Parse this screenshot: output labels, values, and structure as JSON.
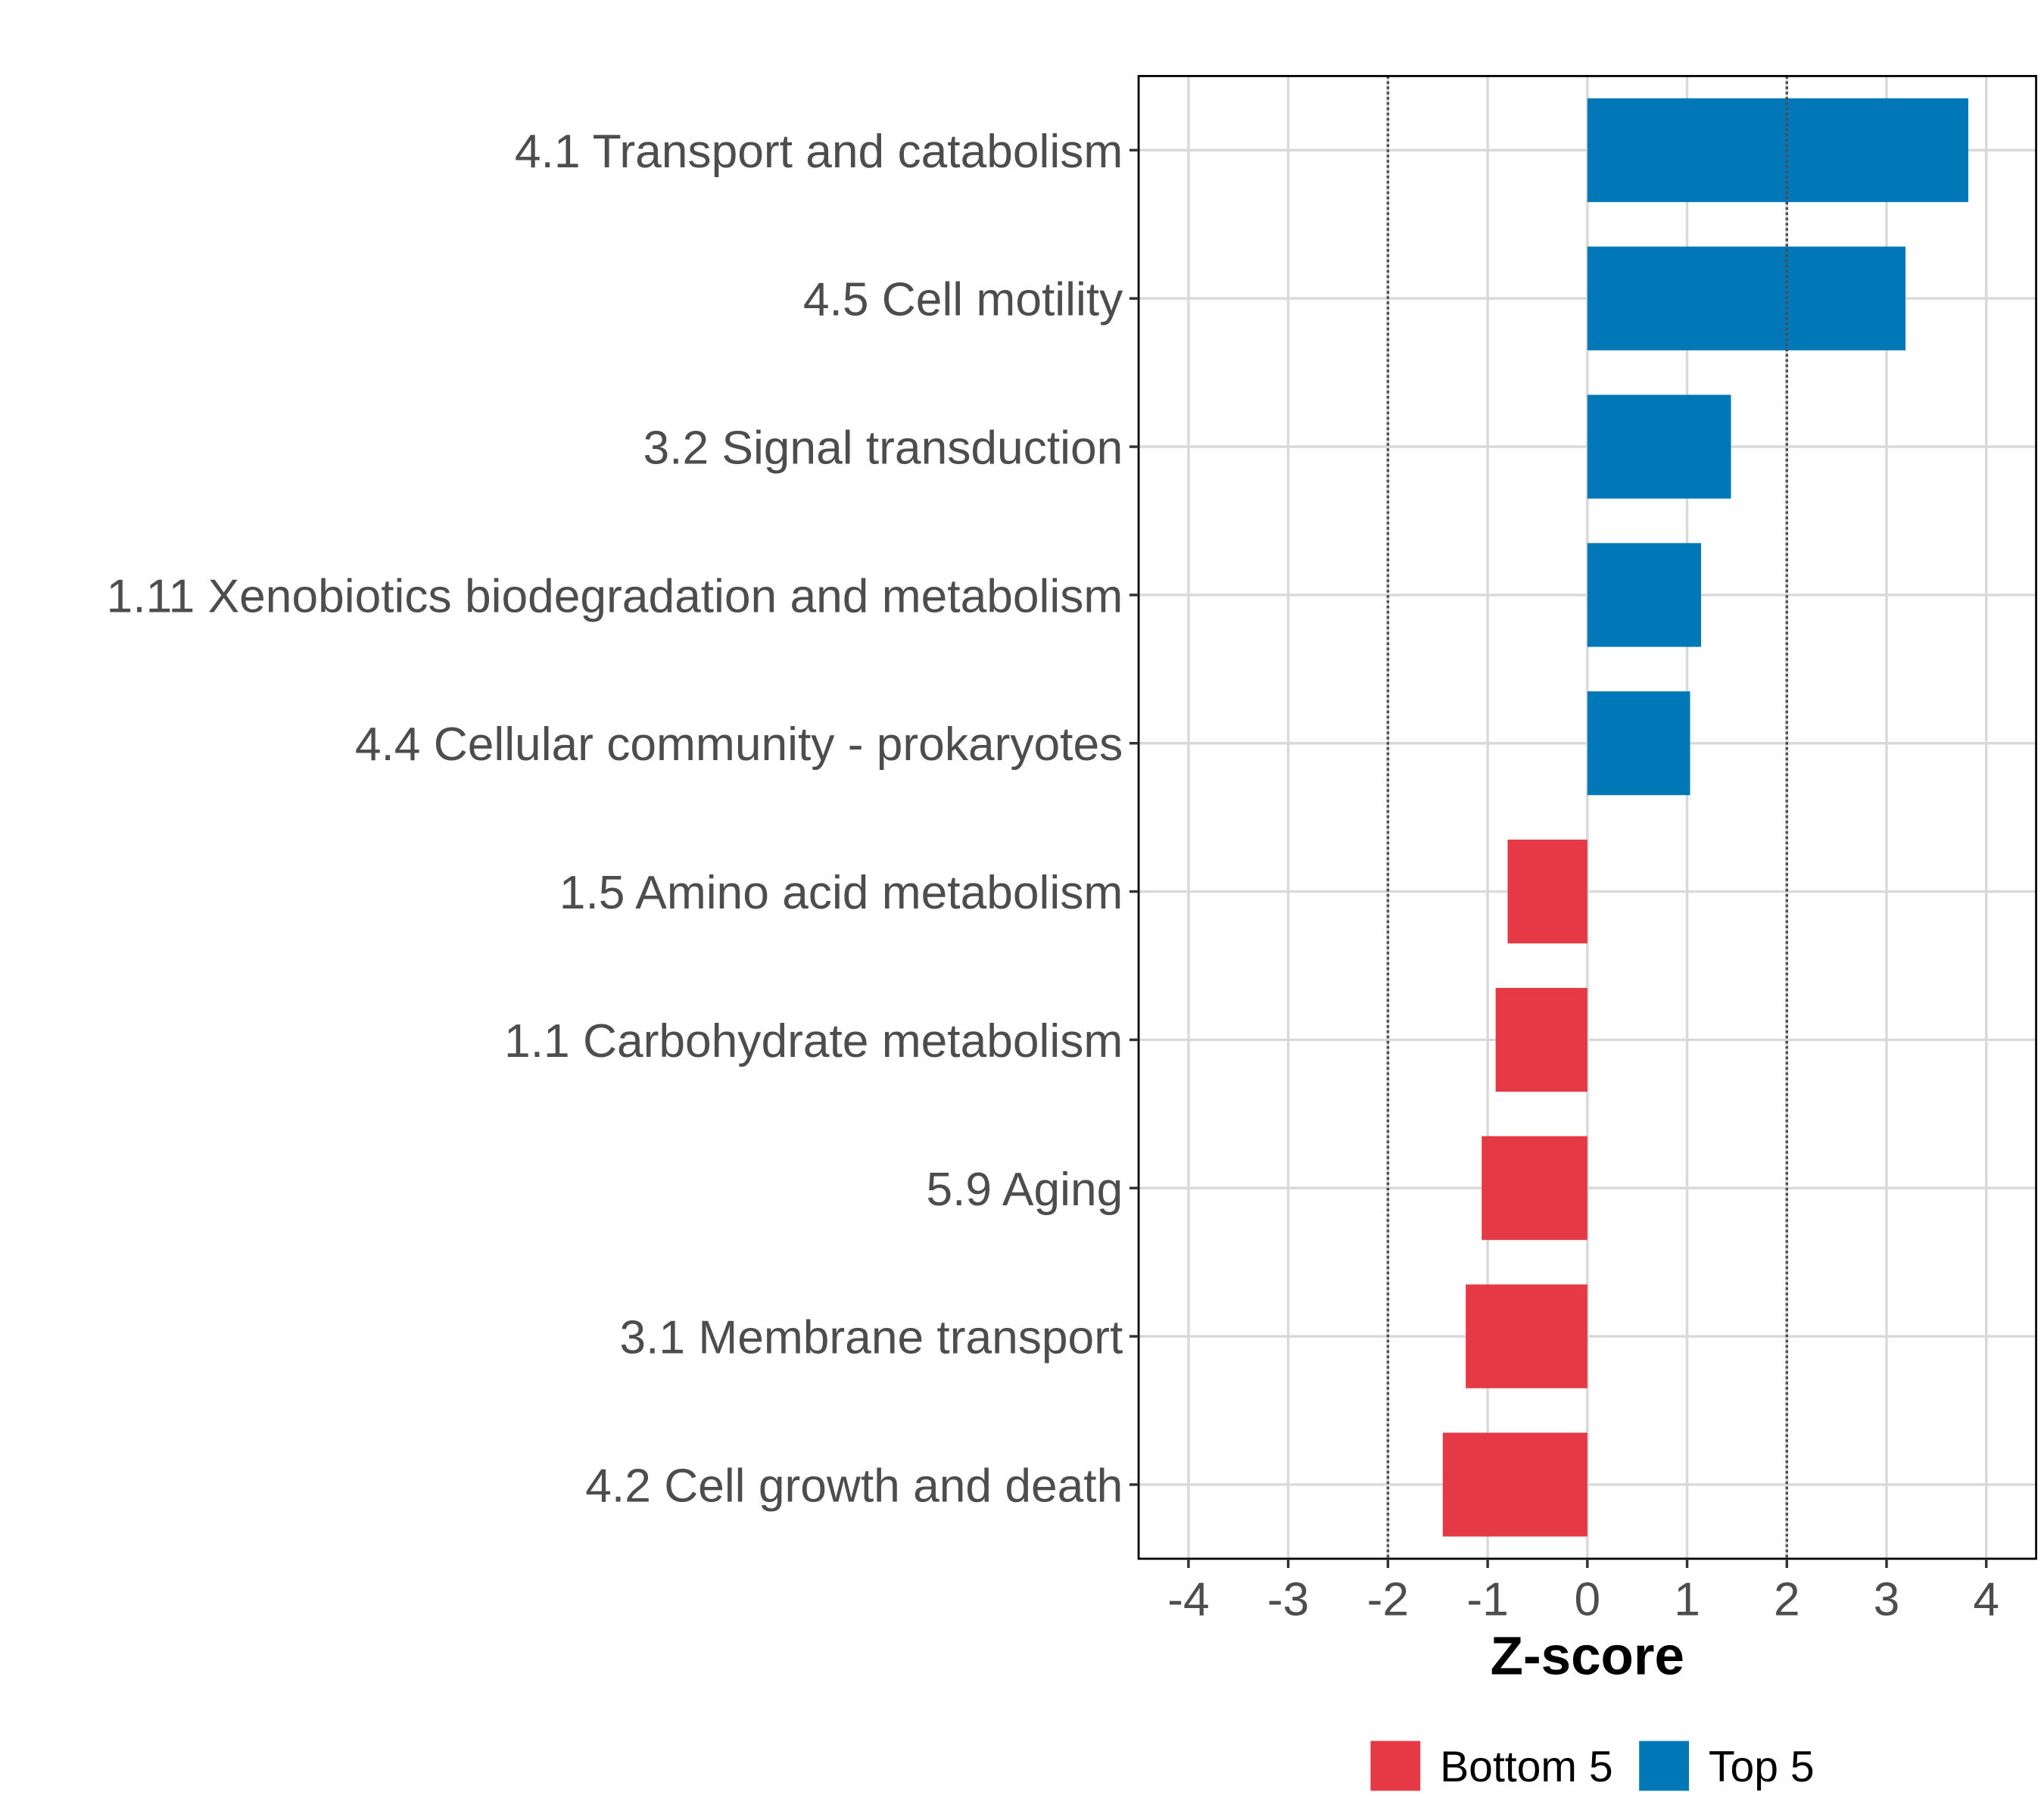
{
  "chart_data": {
    "type": "bar",
    "orientation": "horizontal",
    "title": "",
    "xlabel": "Z-score",
    "ylabel": "",
    "xlim": [
      -4.5,
      4.5
    ],
    "x_ticks": [
      -4,
      -3,
      -2,
      -1,
      0,
      1,
      2,
      3,
      4
    ],
    "x_tick_labels": [
      "-4",
      "-3",
      "-2",
      "-1",
      "0",
      "1",
      "2",
      "3",
      "4"
    ],
    "reference_lines": [
      -2,
      2
    ],
    "grid": true,
    "legend_position": "bottom",
    "categories": [
      "4.1 Transport and catabolism",
      "4.5 Cell motility",
      "3.2 Signal transduction",
      "1.11 Xenobiotics biodegradation and metabolism",
      "4.4 Cellular community - prokaryotes",
      "1.5 Amino acid metabolism",
      "1.1 Carbohydrate metabolism",
      "5.9 Aging",
      "3.1 Membrane transport",
      "4.2 Cell growth and death"
    ],
    "values": [
      3.82,
      3.19,
      1.44,
      1.14,
      1.03,
      -0.8,
      -0.92,
      -1.06,
      -1.22,
      -1.45
    ],
    "groups": [
      "Top 5",
      "Top 5",
      "Top 5",
      "Top 5",
      "Top 5",
      "Bottom 5",
      "Bottom 5",
      "Bottom 5",
      "Bottom 5",
      "Bottom 5"
    ],
    "legend": [
      {
        "name": "Bottom 5",
        "color": "#e63946"
      },
      {
        "name": "Top 5",
        "color": "#0077b6"
      }
    ]
  }
}
